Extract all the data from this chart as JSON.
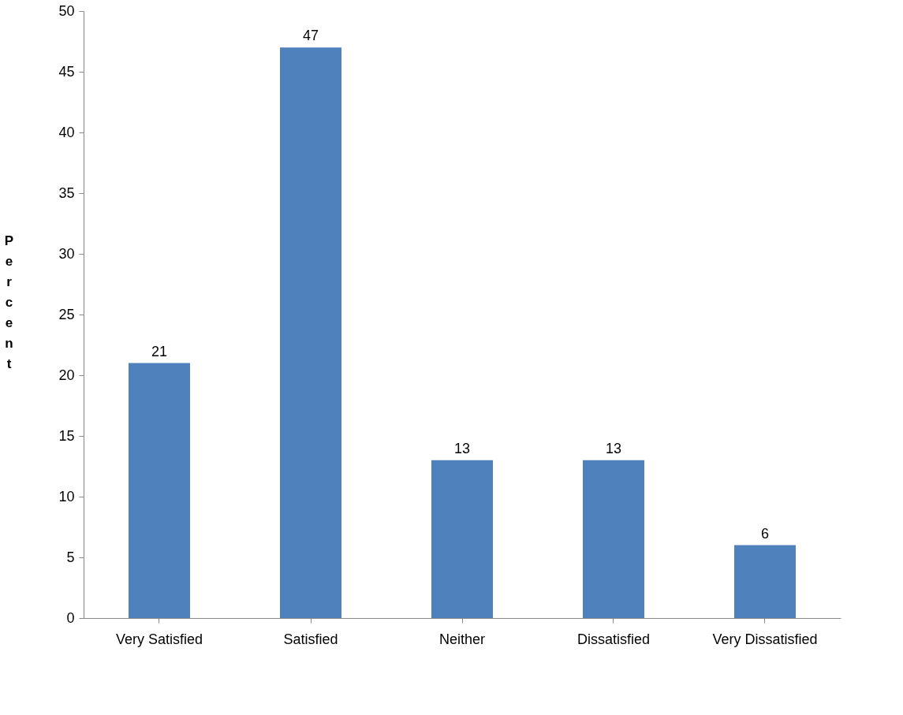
{
  "chart_data": {
    "type": "bar",
    "categories": [
      "Very Satisfied",
      "Satisfied",
      "Neither",
      "Dissatisfied",
      "Very Dissatisfied"
    ],
    "values": [
      21,
      47,
      13,
      13,
      6
    ],
    "color": "#4f81bd",
    "ylabel": "Percent",
    "ylim": [
      0,
      50
    ],
    "yticks": [
      0,
      5,
      10,
      15,
      20,
      25,
      30,
      35,
      40,
      45,
      50
    ],
    "grid": false,
    "data_labels": true
  }
}
